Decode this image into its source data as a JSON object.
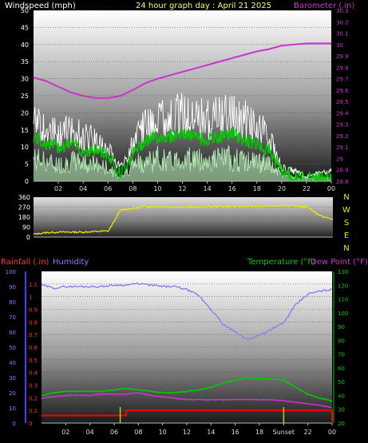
{
  "colors": {
    "wind": "#ffffff",
    "wind_avg": "#00cc00",
    "wind_gust_area": "#c8ffc8",
    "barometer": "#cc33cc",
    "direction": "#e8e800",
    "humidity": "#8080ff",
    "temperature": "#00cc00",
    "dewpoint": "#cc33cc",
    "rainfall": "#ff0000",
    "markers": "#c8c800",
    "axis_left_rain": "#4040ff",
    "axis_right_green": "#00cc00"
  },
  "chart_data": [
    {
      "type": "line",
      "title": "24 hour graph day : April 21 2025",
      "left_axis_label": "Windspeed (mph)",
      "right_axis_label": "Barometer (.in)",
      "x_ticks": [
        "02",
        "04",
        "06",
        "08",
        "10",
        "12",
        "14",
        "16",
        "18",
        "20",
        "22",
        "00"
      ],
      "y_left_ticks": [
        "0",
        "5",
        "10",
        "15",
        "20",
        "25",
        "30",
        "35",
        "40",
        "45",
        "50"
      ],
      "y_left_range": [
        0,
        50
      ],
      "y_right_ticks": [
        "28.8",
        "28.9",
        "29",
        "29.1",
        "29.2",
        "29.3",
        "29.4",
        "29.5",
        "29.6",
        "29.7",
        "29.8",
        "29.9",
        "30",
        "30.1",
        "30.2",
        "30.3"
      ],
      "y_right_range": [
        28.8,
        30.3
      ],
      "x_hours": [
        0,
        1,
        2,
        3,
        4,
        5,
        6,
        7,
        8,
        9,
        10,
        11,
        12,
        13,
        14,
        15,
        16,
        17,
        18,
        19,
        20,
        21,
        22,
        23,
        24
      ],
      "series": [
        {
          "name": "Windspeed",
          "axis": "left",
          "values": [
            23,
            20,
            18,
            20,
            18,
            16,
            12,
            5,
            14,
            22,
            25,
            25,
            26,
            25,
            24,
            25,
            26,
            24,
            22,
            17,
            5,
            4,
            2,
            3,
            4
          ]
        },
        {
          "name": "Wind average",
          "axis": "left",
          "values": [
            13,
            11,
            10,
            11,
            9,
            9,
            8,
            2,
            8,
            12,
            13,
            13,
            14,
            13,
            12,
            13,
            14,
            12,
            11,
            9,
            3,
            1,
            1,
            1,
            1
          ]
        },
        {
          "name": "Wind minimum",
          "axis": "left",
          "values": [
            7,
            6,
            5,
            6,
            6,
            5,
            4,
            1,
            5,
            6,
            7,
            6,
            7,
            7,
            6,
            7,
            7,
            6,
            6,
            5,
            2,
            1,
            1,
            1,
            1
          ]
        },
        {
          "name": "Barometer",
          "axis": "right",
          "values": [
            29.71,
            29.68,
            29.63,
            29.58,
            29.55,
            29.53,
            29.53,
            29.55,
            29.6,
            29.66,
            29.7,
            29.73,
            29.76,
            29.79,
            29.82,
            29.85,
            29.88,
            29.91,
            29.94,
            29.96,
            29.99,
            30.0,
            30.01,
            30.01,
            30.01
          ]
        }
      ]
    },
    {
      "type": "line",
      "title": "",
      "right_labels": [
        "N",
        "W",
        "S",
        "E",
        "N"
      ],
      "x_ticks": [
        "02",
        "04",
        "06",
        "08",
        "10",
        "12",
        "14",
        "16",
        "18",
        "20",
        "22",
        "00"
      ],
      "y_ticks": [
        "0",
        "90",
        "180",
        "270",
        "360"
      ],
      "y_range": [
        0,
        360
      ],
      "x_hours": [
        0,
        1,
        2,
        3,
        4,
        5,
        6,
        7,
        8,
        9,
        10,
        11,
        12,
        13,
        14,
        15,
        16,
        17,
        18,
        19,
        20,
        21,
        22,
        23,
        24
      ],
      "series": [
        {
          "name": "Wind direction",
          "values": [
            25,
            40,
            45,
            45,
            45,
            50,
            55,
            245,
            260,
            275,
            275,
            272,
            272,
            270,
            272,
            275,
            275,
            278,
            275,
            282,
            285,
            278,
            270,
            190,
            160
          ]
        }
      ]
    },
    {
      "type": "line",
      "title": "",
      "left_axis_label": "Rainfall (.in)",
      "middle_axis_label": "Humidity",
      "right_axis_label": "Temperature (°F)",
      "right_axis_label_2": "Dew Point (°F)",
      "x_ticks": [
        "02",
        "04",
        "06",
        "08",
        "10",
        "12",
        "14",
        "16",
        "18",
        "Sunset",
        "22",
        "00"
      ],
      "y_rain_ticks": [
        "0",
        "0.1",
        "0.2",
        "0.3",
        "0.4",
        "0.5",
        "0.6",
        "0.7",
        "0.8",
        "0.9",
        "1",
        "1.1"
      ],
      "y_rain_range": [
        0,
        1.2
      ],
      "y_humidity_ticks": [
        "0",
        "10",
        "20",
        "30",
        "40",
        "50",
        "60",
        "70",
        "80",
        "90",
        "100"
      ],
      "y_humidity_range": [
        0,
        100
      ],
      "y_temp_ticks": [
        "20",
        "30",
        "40",
        "50",
        "60",
        "70",
        "80",
        "90",
        "100",
        "110",
        "120",
        "130"
      ],
      "y_temp_range": [
        20,
        130
      ],
      "x_hours": [
        0,
        1,
        2,
        3,
        4,
        5,
        6,
        7,
        8,
        9,
        10,
        11,
        12,
        13,
        14,
        15,
        16,
        17,
        18,
        19,
        20,
        21,
        22,
        23,
        24
      ],
      "series": [
        {
          "name": "Humidity",
          "axis": "humidity",
          "values": [
            91,
            89,
            90,
            90,
            90,
            90,
            91,
            91,
            92,
            91,
            90,
            90,
            88,
            84,
            75,
            65,
            60,
            55,
            58,
            62,
            66,
            78,
            85,
            87,
            88
          ]
        },
        {
          "name": "Temperature",
          "axis": "temperature",
          "values": [
            40,
            42,
            43,
            43,
            43,
            43,
            44,
            45,
            44,
            43,
            42,
            42,
            43,
            44,
            46,
            49,
            51,
            53,
            52,
            52,
            51,
            46,
            41,
            38,
            36
          ]
        },
        {
          "name": "Dew Point",
          "axis": "temperature",
          "values": [
            38,
            39,
            40,
            40,
            40,
            41,
            41,
            41,
            42,
            40,
            39,
            38,
            37,
            37,
            37,
            37,
            37,
            37,
            37,
            37,
            36,
            35,
            34,
            33,
            31
          ]
        },
        {
          "name": "Rainfall",
          "axis": "rain",
          "values": [
            0.06,
            0.06,
            0.06,
            0.06,
            0.06,
            0.06,
            0.06,
            0.1,
            0.1,
            0.1,
            0.1,
            0.1,
            0.1,
            0.1,
            0.1,
            0.1,
            0.1,
            0.1,
            0.1,
            0.1,
            0.1,
            0.1,
            0.1,
            0.1,
            0.01
          ]
        }
      ],
      "event_markers_hours": [
        6.5,
        20.0
      ]
    }
  ]
}
